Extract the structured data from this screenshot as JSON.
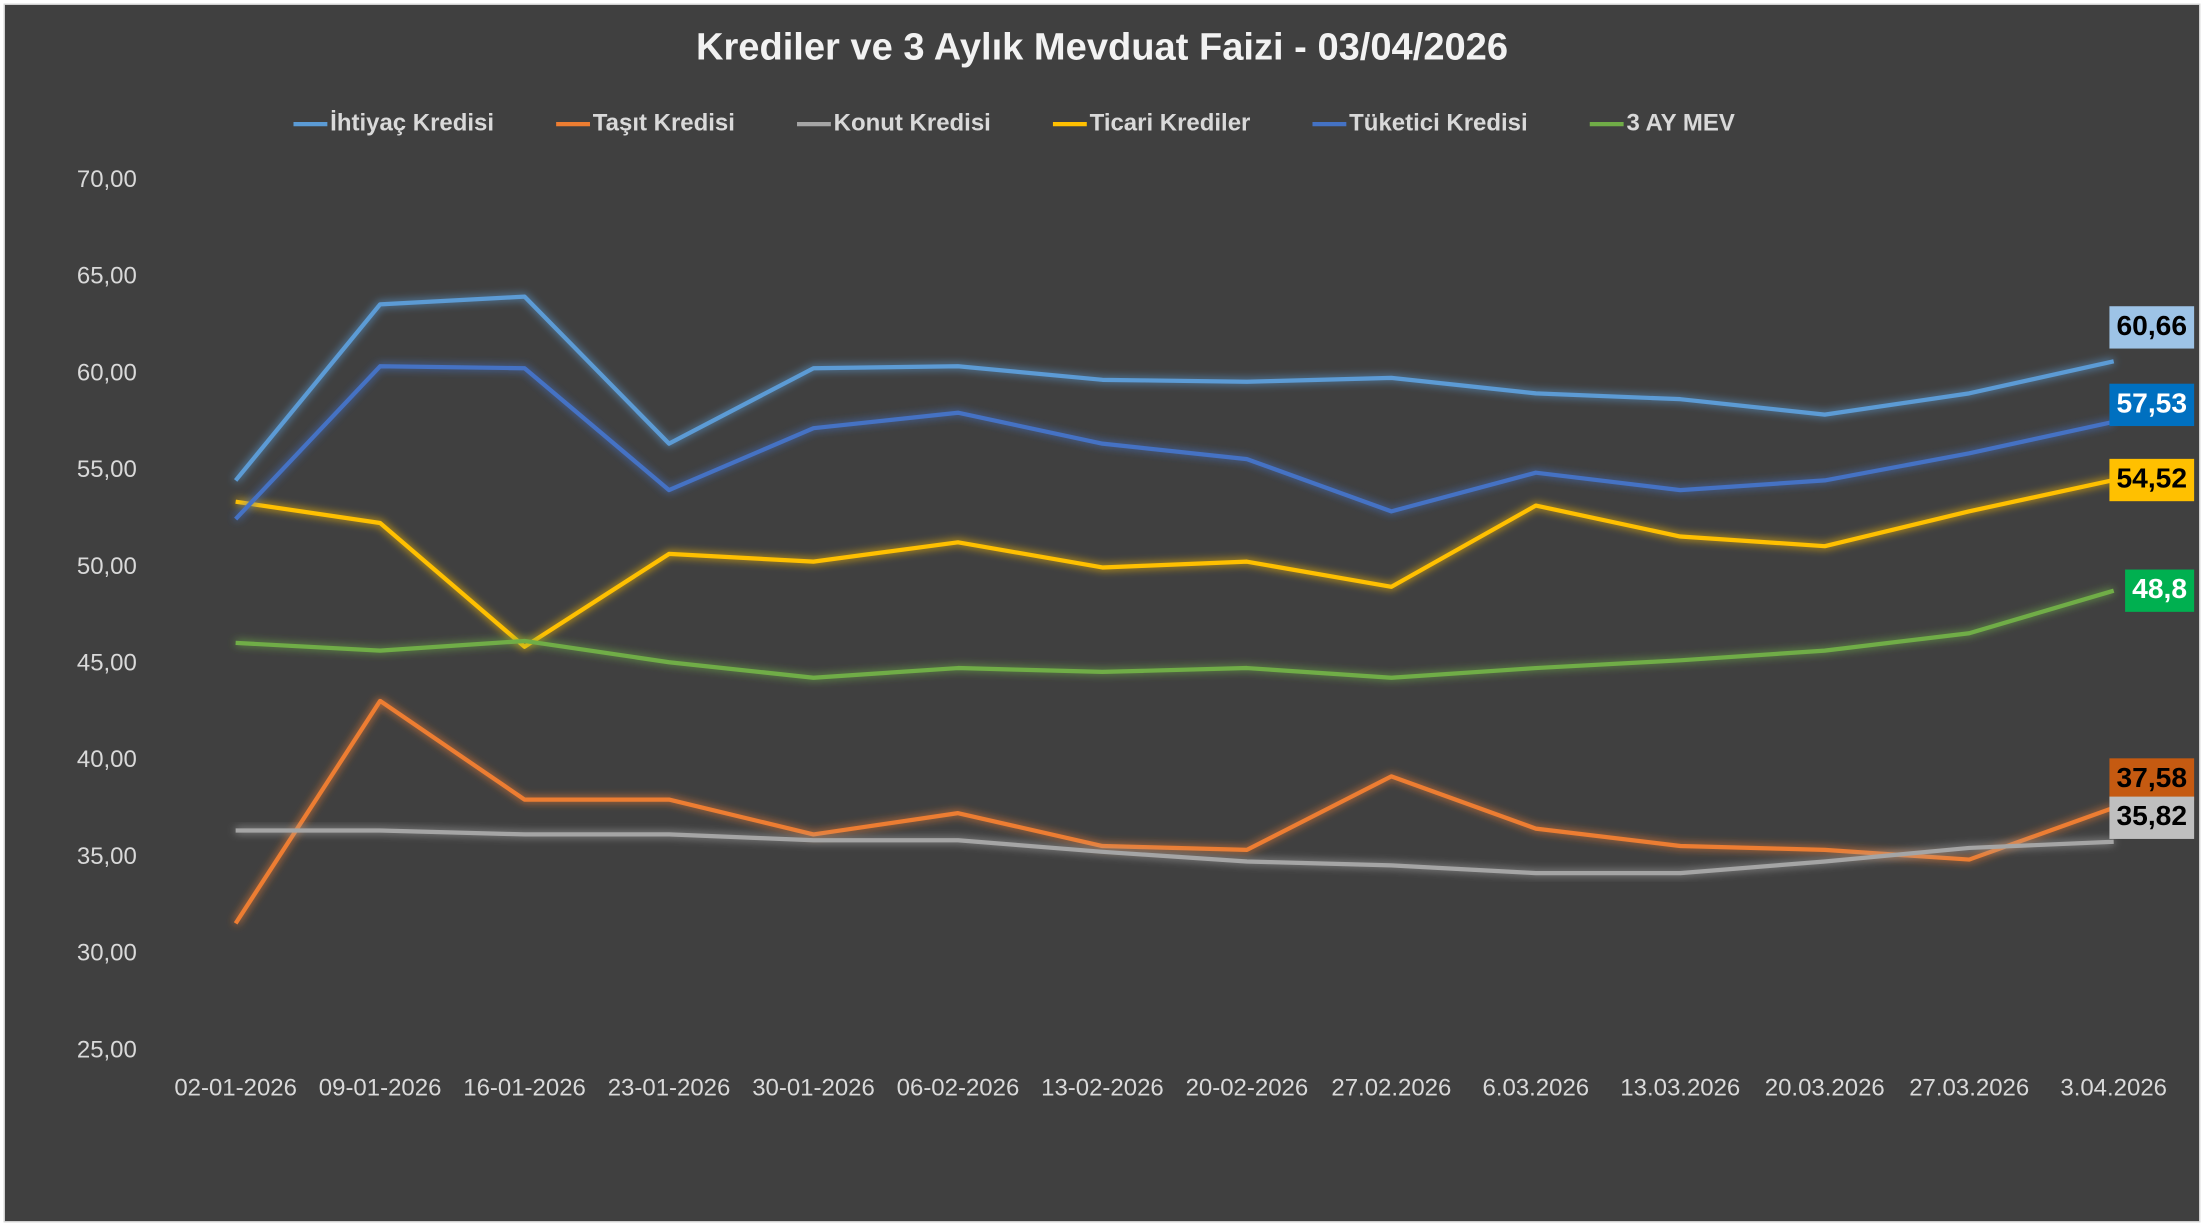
{
  "chart_data": {
    "type": "line",
    "title": "Krediler ve 3 Aylık Mevduat Faizi - 03/04/2026",
    "categories": [
      "02-01-2026",
      "09-01-2026",
      "16-01-2026",
      "23-01-2026",
      "30-01-2026",
      "06-02-2026",
      "13-02-2026",
      "20-02-2026",
      "27.02.2026",
      "6.03.2026",
      "13.03.2026",
      "20.03.2026",
      "27.03.2026",
      "3.04.2026"
    ],
    "ylim": [
      25,
      70
    ],
    "yticks": [
      {
        "value": 25,
        "label": "25,00"
      },
      {
        "value": 30,
        "label": "30,00"
      },
      {
        "value": 35,
        "label": "35,00"
      },
      {
        "value": 40,
        "label": "40,00"
      },
      {
        "value": 45,
        "label": "45,00"
      },
      {
        "value": 50,
        "label": "50,00"
      },
      {
        "value": 55,
        "label": "55,00"
      },
      {
        "value": 60,
        "label": "60,00"
      },
      {
        "value": 65,
        "label": "65,00"
      },
      {
        "value": 70,
        "label": "70,00"
      }
    ],
    "grid": false,
    "legend": "top",
    "series": [
      {
        "name": "İhtiyaç Kredisi",
        "color": "#5b9bd5",
        "label_box": "#9dc3e6",
        "label_text": "#000000",
        "values": [
          54.5,
          63.6,
          64.0,
          56.4,
          60.3,
          60.4,
          59.7,
          59.6,
          59.8,
          59.0,
          58.7,
          57.9,
          59.0,
          60.66
        ],
        "value_labels": [
          null,
          null,
          null,
          null,
          null,
          null,
          null,
          null,
          null,
          null,
          null,
          null,
          null,
          "60,66"
        ]
      },
      {
        "name": "Taşıt Kredisi",
        "color": "#ed7d31",
        "label_box": "#c55a11",
        "label_text": "#000000",
        "values": [
          31.6,
          43.1,
          38.0,
          38.0,
          36.2,
          37.3,
          35.6,
          35.4,
          39.2,
          36.5,
          35.6,
          35.4,
          34.9,
          37.58
        ],
        "value_labels": [
          null,
          null,
          null,
          null,
          null,
          null,
          null,
          null,
          null,
          null,
          null,
          null,
          null,
          "37,58"
        ]
      },
      {
        "name": "Konut Kredisi",
        "color": "#a5a5a5",
        "label_box": "#bfbfbf",
        "label_text": "#000000",
        "values": [
          36.4,
          36.4,
          36.2,
          36.2,
          35.9,
          35.9,
          35.3,
          34.8,
          34.6,
          34.2,
          34.2,
          34.8,
          35.5,
          35.82
        ],
        "value_labels": [
          null,
          null,
          null,
          null,
          null,
          null,
          null,
          null,
          null,
          null,
          null,
          null,
          null,
          "35,82"
        ]
      },
      {
        "name": "Ticari Krediler",
        "color": "#ffc000",
        "label_box": "#ffc000",
        "label_text": "#000000",
        "values": [
          53.4,
          52.3,
          45.9,
          50.7,
          50.3,
          51.3,
          50.0,
          50.3,
          49.0,
          53.2,
          51.6,
          51.1,
          52.9,
          54.52
        ],
        "value_labels": [
          null,
          null,
          null,
          null,
          null,
          null,
          null,
          null,
          null,
          null,
          null,
          null,
          null,
          "54,52"
        ]
      },
      {
        "name": "Tüketici Kredisi",
        "color": "#4472c4",
        "label_box": "#0070c0",
        "label_text": "#ffffff",
        "values": [
          52.5,
          60.4,
          60.3,
          54.0,
          57.2,
          58.0,
          56.4,
          55.6,
          52.9,
          54.9,
          54.0,
          54.5,
          55.9,
          57.53
        ],
        "value_labels": [
          null,
          null,
          null,
          null,
          null,
          null,
          null,
          null,
          null,
          null,
          null,
          null,
          null,
          "57,53"
        ]
      },
      {
        "name": "3 AY MEV",
        "color": "#70ad47",
        "label_box": "#00b050",
        "label_text": "#ffffff",
        "values": [
          46.1,
          45.7,
          46.2,
          45.1,
          44.3,
          44.8,
          44.6,
          44.8,
          44.3,
          44.8,
          45.2,
          45.7,
          46.6,
          48.8
        ],
        "value_labels": [
          null,
          null,
          null,
          null,
          null,
          null,
          null,
          null,
          null,
          null,
          null,
          null,
          null,
          "48,8"
        ]
      }
    ]
  }
}
